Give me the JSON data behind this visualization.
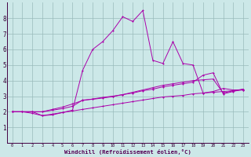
{
  "xlabel": "Windchill (Refroidissement éolien,°C)",
  "x_values": [
    0,
    1,
    2,
    3,
    4,
    5,
    6,
    7,
    8,
    9,
    10,
    11,
    12,
    13,
    14,
    15,
    16,
    17,
    18,
    19,
    20,
    21,
    22,
    23
  ],
  "line1": [
    2.0,
    2.0,
    2.0,
    1.75,
    1.85,
    1.95,
    2.05,
    2.15,
    2.25,
    2.35,
    2.45,
    2.55,
    2.65,
    2.75,
    2.85,
    2.95,
    3.0,
    3.05,
    3.15,
    3.2,
    3.25,
    3.3,
    3.35,
    3.4
  ],
  "line2": [
    2.0,
    2.0,
    2.0,
    2.0,
    2.1,
    2.2,
    2.35,
    2.75,
    2.8,
    2.88,
    2.97,
    3.1,
    3.25,
    3.4,
    3.55,
    3.7,
    3.8,
    3.9,
    4.0,
    4.05,
    4.1,
    3.2,
    3.35,
    3.45
  ],
  "line3": [
    2.0,
    2.0,
    2.0,
    2.0,
    2.15,
    2.3,
    2.5,
    2.72,
    2.82,
    2.92,
    3.0,
    3.1,
    3.2,
    3.35,
    3.45,
    3.6,
    3.7,
    3.8,
    3.9,
    4.35,
    4.5,
    3.15,
    3.3,
    3.45
  ],
  "line4": [
    2.0,
    2.0,
    1.9,
    1.75,
    1.8,
    1.95,
    2.1,
    4.65,
    6.0,
    6.5,
    7.2,
    8.1,
    7.8,
    8.5,
    5.3,
    5.1,
    6.5,
    5.1,
    5.0,
    3.2,
    3.3,
    3.5,
    3.4,
    3.4
  ],
  "bg_color": "#cce8e8",
  "line_color": "#aa00aa",
  "grid_color": "#99bbbb",
  "ylim": [
    0,
    9
  ],
  "xlim": [
    -0.5,
    23.5
  ],
  "yticks": [
    1,
    2,
    3,
    4,
    5,
    6,
    7,
    8
  ],
  "xticks": [
    0,
    1,
    2,
    3,
    4,
    5,
    6,
    7,
    8,
    9,
    10,
    11,
    12,
    13,
    14,
    15,
    16,
    17,
    18,
    19,
    20,
    21,
    22,
    23
  ]
}
